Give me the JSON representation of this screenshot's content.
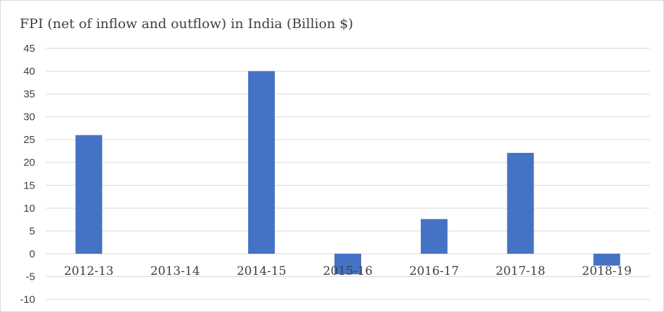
{
  "chart_data": {
    "type": "bar",
    "title": "FPI (net of inflow and outflow) in India (Billion $)",
    "categories": [
      "2012-13",
      "2013-14",
      "2014-15",
      "2015-16",
      "2016-17",
      "2017-18",
      "2018-19"
    ],
    "values": [
      26,
      0,
      40,
      -4.5,
      7.6,
      22.1,
      -2.6
    ],
    "ylim": [
      -10,
      45
    ],
    "yticks": [
      45,
      40,
      35,
      30,
      25,
      20,
      15,
      10,
      5,
      0,
      -5,
      -10
    ],
    "grid": true,
    "legend": "none",
    "bar_color": "#4472c4",
    "grid_color": "#d9d9d9"
  }
}
